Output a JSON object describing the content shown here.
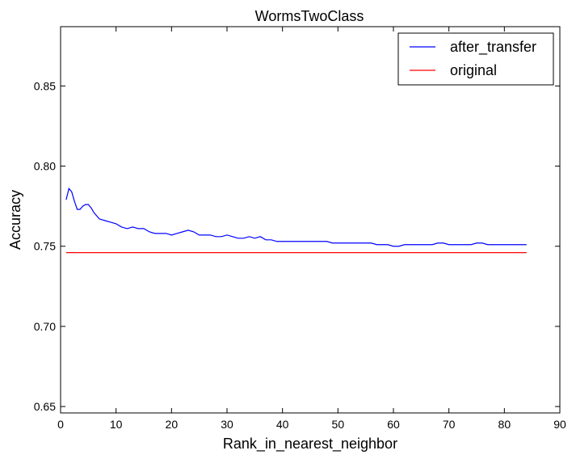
{
  "chart_data": {
    "type": "line",
    "title": "WormsTwoClass",
    "xlabel": "Rank_in_nearest_neighbor",
    "ylabel": "Accuracy",
    "xlim": [
      0,
      90
    ],
    "ylim": [
      0.646,
      0.887
    ],
    "xticks": [
      0,
      10,
      20,
      30,
      40,
      50,
      60,
      70,
      80,
      90
    ],
    "yticks": [
      0.65,
      0.7,
      0.75,
      0.8,
      0.85
    ],
    "xtick_labels": [
      "0",
      "10",
      "20",
      "30",
      "40",
      "50",
      "60",
      "70",
      "80",
      "90"
    ],
    "ytick_labels": [
      "0.65",
      "0.70",
      "0.75",
      "0.80",
      "0.85"
    ],
    "grid": false,
    "legend_position": "top-right",
    "series": [
      {
        "name": "after_transfer",
        "color": "#0000ff",
        "x": [
          1,
          1.5,
          2,
          2.5,
          3,
          3.5,
          4,
          4.5,
          5,
          5.5,
          6,
          6.5,
          7,
          8,
          9,
          10,
          11,
          12,
          13,
          14,
          15,
          16,
          17,
          18,
          19,
          20,
          21,
          22,
          23,
          24,
          25,
          26,
          27,
          28,
          29,
          30,
          31,
          32,
          33,
          34,
          35,
          36,
          37,
          38,
          39,
          40,
          41,
          42,
          43,
          44,
          45,
          46,
          47,
          48,
          49,
          50,
          51,
          52,
          53,
          54,
          55,
          56,
          57,
          58,
          59,
          60,
          61,
          62,
          63,
          64,
          65,
          66,
          67,
          68,
          69,
          70,
          71,
          72,
          73,
          74,
          75,
          76,
          77,
          78,
          79,
          80,
          81,
          82,
          83,
          84
        ],
        "y": [
          0.779,
          0.786,
          0.784,
          0.778,
          0.773,
          0.773,
          0.775,
          0.776,
          0.776,
          0.774,
          0.771,
          0.769,
          0.767,
          0.766,
          0.765,
          0.764,
          0.762,
          0.761,
          0.762,
          0.761,
          0.761,
          0.759,
          0.758,
          0.758,
          0.758,
          0.757,
          0.758,
          0.759,
          0.76,
          0.759,
          0.757,
          0.757,
          0.757,
          0.756,
          0.756,
          0.757,
          0.756,
          0.755,
          0.755,
          0.756,
          0.755,
          0.756,
          0.754,
          0.754,
          0.753,
          0.753,
          0.753,
          0.753,
          0.753,
          0.753,
          0.753,
          0.753,
          0.753,
          0.753,
          0.752,
          0.752,
          0.752,
          0.752,
          0.752,
          0.752,
          0.752,
          0.752,
          0.751,
          0.751,
          0.751,
          0.75,
          0.75,
          0.751,
          0.751,
          0.751,
          0.751,
          0.751,
          0.751,
          0.752,
          0.752,
          0.751,
          0.751,
          0.751,
          0.751,
          0.751,
          0.752,
          0.752,
          0.751,
          0.751,
          0.751,
          0.751,
          0.751,
          0.751,
          0.751,
          0.751
        ]
      },
      {
        "name": "original",
        "color": "#ff0000",
        "x": [
          1,
          84
        ],
        "y": [
          0.746,
          0.746
        ]
      }
    ]
  }
}
